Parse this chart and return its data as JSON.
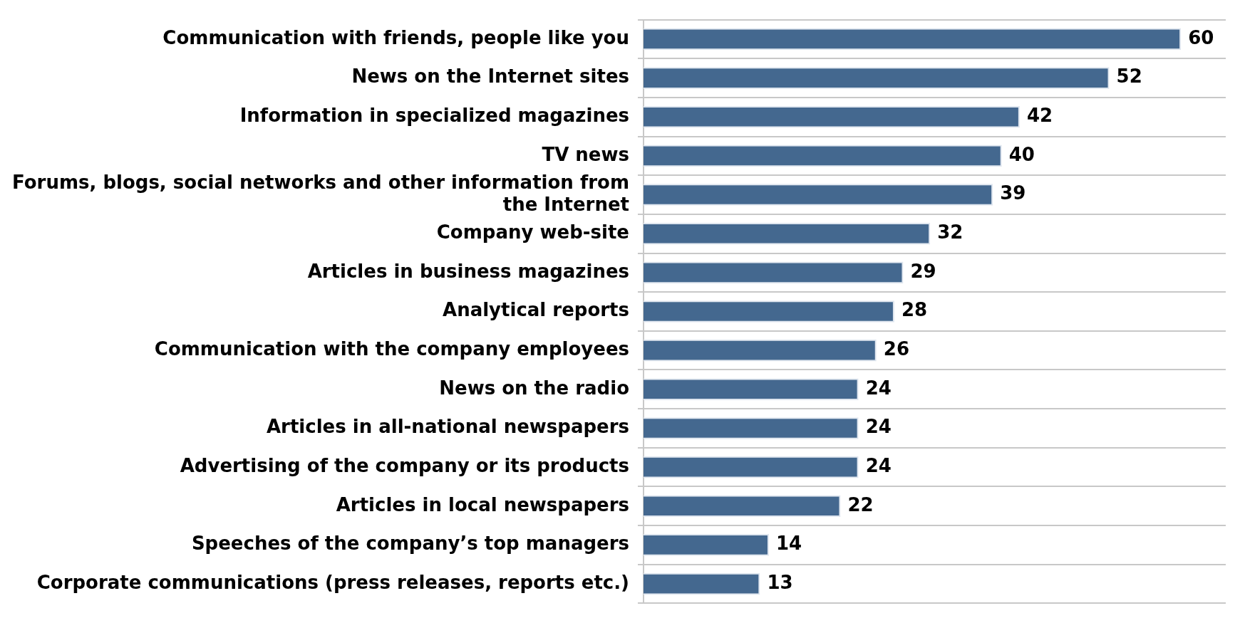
{
  "chart_data": {
    "type": "bar",
    "orientation": "horizontal",
    "categories": [
      "Communication with friends, people like you",
      "News on the Internet sites",
      "Information in specialized magazines",
      "TV news",
      "Forums, blogs, social networks and other information from the Internet",
      "Company web-site",
      "Articles in business magazines",
      "Analytical reports",
      "Communication with the company employees",
      "News on the radio",
      "Articles in all-national newspapers",
      "Advertising of the company or its products",
      "Articles in local newspapers",
      "Speeches of the company’s top managers",
      "Corporate communications (press releases, reports etc.)"
    ],
    "values": [
      60,
      52,
      42,
      40,
      39,
      32,
      29,
      28,
      26,
      24,
      24,
      24,
      22,
      14,
      13
    ],
    "color": "#44688f",
    "xlim": [
      0,
      65
    ],
    "tick_labels": "y",
    "grid": "y",
    "data_labels": true,
    "legend": false
  }
}
